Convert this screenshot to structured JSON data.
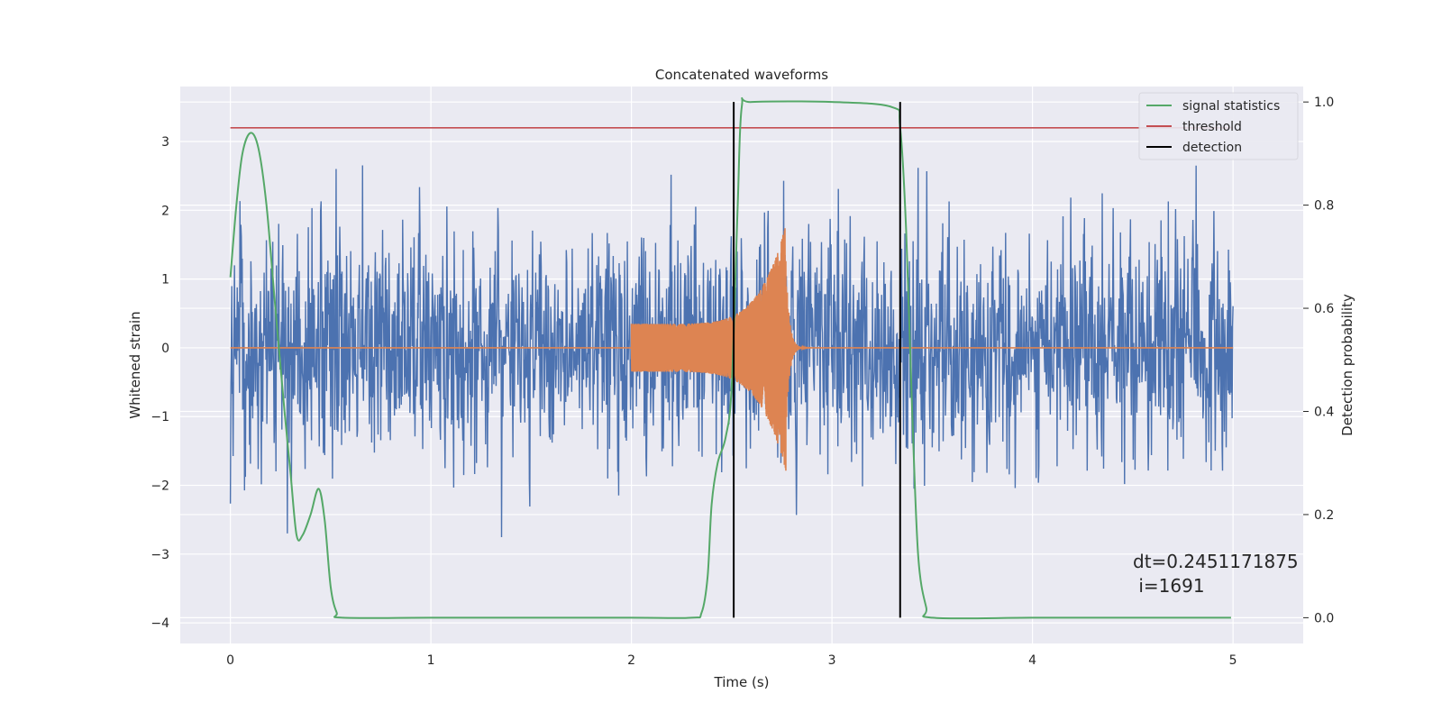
{
  "chart_data": {
    "type": "line",
    "title": "Concatenated waveforms",
    "xlabel": "Time (s)",
    "ylabel": "Whitened strain",
    "y2label": "Detection probability",
    "xlim": [
      -0.25,
      5.35
    ],
    "ylim": [
      -4.3,
      3.8
    ],
    "y2lim": [
      -0.05,
      1.03
    ],
    "x_ticks": [
      0,
      1,
      2,
      3,
      4,
      5
    ],
    "y_ticks": [
      -4,
      -3,
      -2,
      -1,
      0,
      1,
      2,
      3
    ],
    "y2_ticks": [
      0.0,
      0.2,
      0.4,
      0.6,
      0.8,
      1.0
    ],
    "x_tick_labels": [
      "0",
      "1",
      "2",
      "3",
      "4",
      "5"
    ],
    "y_tick_labels": [
      "−4",
      "−3",
      "−2",
      "−1",
      "0",
      "1",
      "2",
      "3"
    ],
    "y2_tick_labels": [
      "0.0",
      "0.2",
      "0.4",
      "0.6",
      "0.8",
      "1.0"
    ],
    "grid": true,
    "legend_position": "top-right",
    "series": [
      {
        "name": "",
        "axis": "left",
        "color": "#4c72b0",
        "kind": "noise",
        "x_range": [
          0,
          5
        ],
        "amplitude_range": [
          -3.0,
          2.9
        ]
      },
      {
        "name": "",
        "axis": "left",
        "color": "#dd8452",
        "kind": "chirp",
        "x_range": [
          0,
          5
        ],
        "chirp_start": 2.0,
        "chirp_peak": 2.77,
        "start_amplitude": 0.35,
        "peak_amplitude": 1.8
      },
      {
        "name": "signal statistics",
        "axis": "right",
        "color": "#55a868",
        "x": [
          0,
          0.03,
          0.06,
          0.1,
          0.14,
          0.18,
          0.22,
          0.27,
          0.3,
          0.33,
          0.36,
          0.4,
          0.44,
          0.47,
          0.5,
          0.53,
          0.56,
          1.0,
          1.5,
          2.0,
          2.3,
          2.35,
          2.38,
          2.4,
          2.43,
          2.47,
          2.5,
          2.53,
          2.55,
          2.6,
          3.0,
          3.3,
          3.34,
          3.37,
          3.4,
          3.43,
          3.47,
          3.5,
          4.0,
          4.5,
          4.99
        ],
        "y": [
          0.66,
          0.8,
          0.9,
          0.94,
          0.91,
          0.8,
          0.62,
          0.4,
          0.28,
          0.16,
          0.16,
          0.2,
          0.25,
          0.19,
          0.06,
          0.01,
          0.0,
          0.0,
          0.0,
          0.0,
          0.0,
          0.01,
          0.08,
          0.22,
          0.3,
          0.35,
          0.45,
          0.8,
          0.99,
          1.0,
          1.0,
          0.99,
          0.95,
          0.75,
          0.4,
          0.12,
          0.02,
          0.0,
          0.0,
          0.0,
          0.0
        ]
      },
      {
        "name": "threshold",
        "axis": "right",
        "color": "#c44e52",
        "x": [
          0,
          5
        ],
        "y": [
          0.95,
          0.95
        ]
      },
      {
        "name": "detection",
        "axis": "right",
        "color": "#000000",
        "kind": "vlines",
        "x": [
          2.51,
          3.34
        ],
        "y_range": [
          0.0,
          1.0
        ]
      }
    ],
    "annotations": [
      {
        "text": "dt=0.2451171875",
        "x": 4.5,
        "y": -3.1
      },
      {
        "text": " i=1691",
        "x": 4.5,
        "y": -3.45
      }
    ]
  }
}
